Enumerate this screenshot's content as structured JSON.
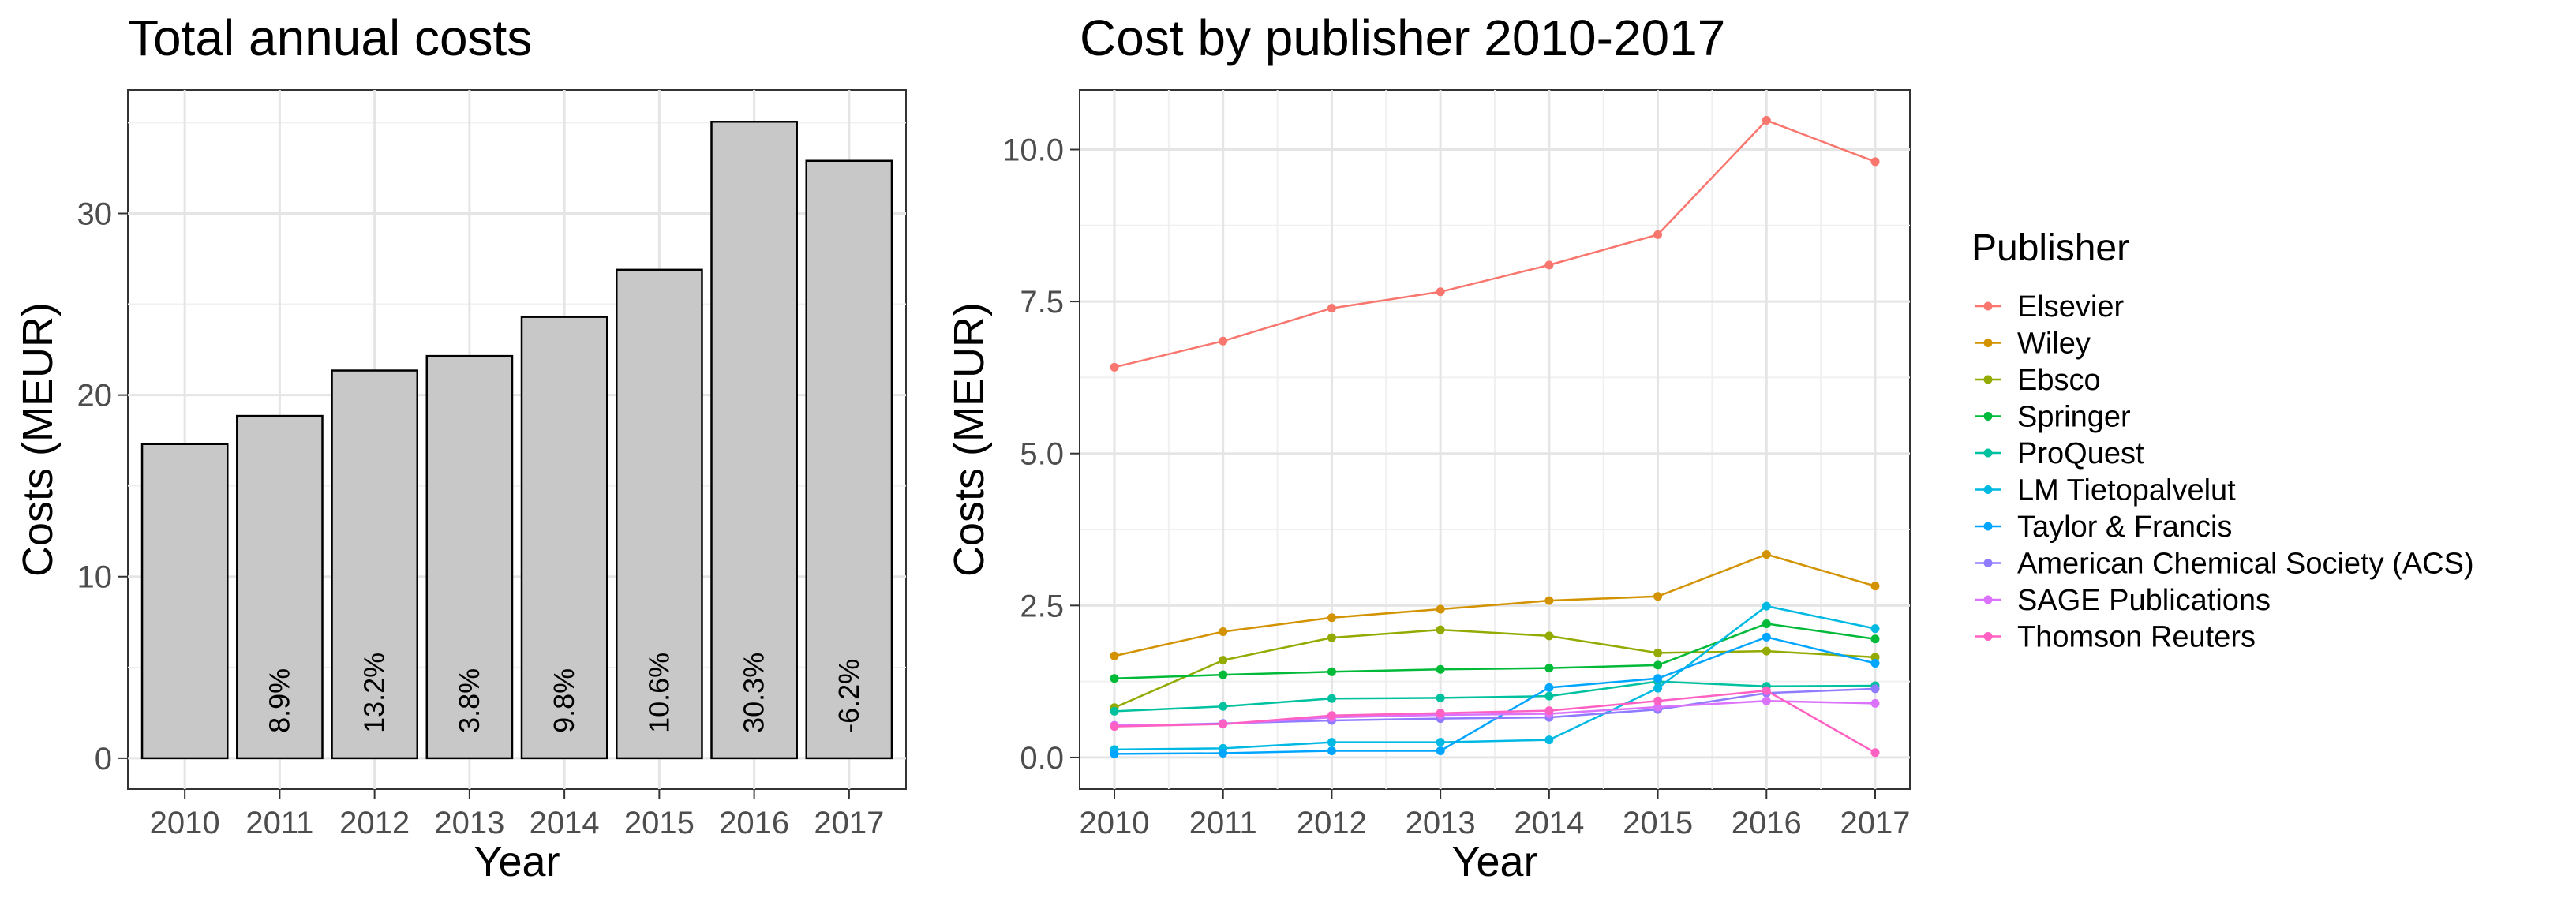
{
  "chart_data": [
    {
      "type": "bar",
      "title": "Total annual costs",
      "xlabel": "Year",
      "ylabel": "Costs (MEUR)",
      "categories": [
        "2010",
        "2011",
        "2012",
        "2013",
        "2014",
        "2015",
        "2016",
        "2017"
      ],
      "values": [
        17.3,
        18.85,
        21.35,
        22.15,
        24.3,
        26.9,
        35.05,
        32.9
      ],
      "bar_labels": [
        "",
        "8.9%",
        "13.2%",
        "3.8%",
        "9.8%",
        "10.6%",
        "30.3%",
        "-6.2%"
      ],
      "ylim": [
        -1.7,
        36.8
      ],
      "yticks": [
        0,
        10,
        20,
        30
      ],
      "ytick_labels": [
        "0",
        "10",
        "20",
        "30"
      ],
      "bar_color": "#c8c8c8",
      "grid": true
    },
    {
      "type": "line",
      "title": "Cost by publisher 2010-2017",
      "xlabel": "Year",
      "ylabel": "Costs (MEUR)",
      "x": [
        "2010",
        "2011",
        "2012",
        "2013",
        "2014",
        "2015",
        "2016",
        "2017"
      ],
      "ylim": [
        -0.52,
        10.98
      ],
      "yticks": [
        0,
        2.5,
        5,
        7.5,
        10
      ],
      "ytick_labels": [
        "0.0",
        "2.5",
        "5.0",
        "7.5",
        "10.0"
      ],
      "legend_title": "Publisher",
      "legend_position": "right",
      "grid": true,
      "series": [
        {
          "name": "Elsevier",
          "color": "#F8766D",
          "values": [
            6.42,
            6.85,
            7.39,
            7.66,
            8.1,
            8.6,
            10.48,
            9.8
          ]
        },
        {
          "name": "Wiley",
          "color": "#D39200",
          "values": [
            1.67,
            2.07,
            2.3,
            2.44,
            2.58,
            2.65,
            3.34,
            2.82
          ]
        },
        {
          "name": "Ebsco",
          "color": "#93AA00",
          "values": [
            0.82,
            1.6,
            1.97,
            2.1,
            2.0,
            1.72,
            1.75,
            1.65
          ]
        },
        {
          "name": "Springer",
          "color": "#00BA38",
          "values": [
            1.3,
            1.36,
            1.41,
            1.45,
            1.47,
            1.52,
            2.2,
            1.95
          ]
        },
        {
          "name": "ProQuest",
          "color": "#00C19F",
          "values": [
            0.76,
            0.84,
            0.97,
            0.98,
            1.01,
            1.25,
            1.17,
            1.18
          ]
        },
        {
          "name": "LM Tietopalvelut",
          "color": "#00B9E3",
          "values": [
            0.13,
            0.15,
            0.25,
            0.25,
            0.29,
            1.14,
            2.49,
            2.12
          ]
        },
        {
          "name": "Taylor & Francis",
          "color": "#00A5FF",
          "values": [
            0.06,
            0.07,
            0.11,
            0.11,
            1.15,
            1.3,
            1.98,
            1.55
          ]
        },
        {
          "name": "American Chemical Society (ACS)",
          "color": "#8F7BFF",
          "values": [
            0.52,
            0.56,
            0.61,
            0.64,
            0.66,
            0.79,
            1.06,
            1.13
          ]
        },
        {
          "name": "SAGE Publications",
          "color": "#DB72FB",
          "values": [
            0.53,
            0.55,
            0.66,
            0.7,
            0.72,
            0.83,
            0.93,
            0.89
          ]
        },
        {
          "name": "Thomson Reuters",
          "color": "#FF61C3",
          "values": [
            0.51,
            0.55,
            0.69,
            0.73,
            0.77,
            0.93,
            1.1,
            0.08
          ]
        }
      ]
    }
  ]
}
